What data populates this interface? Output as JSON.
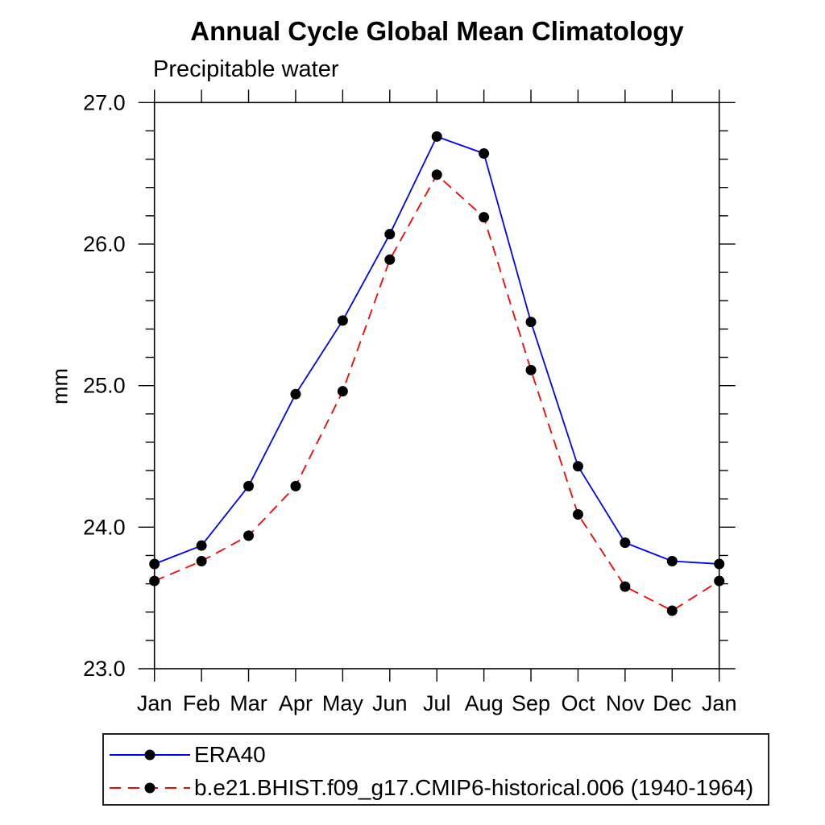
{
  "header": {
    "title": "Annual Cycle Global Mean Climatology",
    "subtitle": "Precipitable water"
  },
  "chart_data": {
    "type": "line",
    "title": "Annual Cycle Global Mean Climatology",
    "subtitle": "Precipitable water",
    "xlabel": "",
    "ylabel": "mm",
    "x_tick_labels": [
      "Jan",
      "Feb",
      "Mar",
      "Apr",
      "May",
      "Jun",
      "Jul",
      "Aug",
      "Sep",
      "Oct",
      "Nov",
      "Dec",
      "Jan"
    ],
    "y_tick_labels": [
      "23.0",
      "24.0",
      "25.0",
      "26.0",
      "27.0"
    ],
    "ylim": [
      23.0,
      27.0
    ],
    "y_major_step": 1.0,
    "y_minor_step": 0.2,
    "grid": false,
    "legend_position": "bottom-left-box",
    "axis_color": "#000000",
    "marker_color": "#000000",
    "series": [
      {
        "name": "ERA40",
        "color": "#0000ff",
        "style": "solid",
        "marker": "circle",
        "values": [
          23.74,
          23.87,
          24.29,
          24.94,
          25.46,
          26.07,
          26.76,
          26.64,
          25.45,
          24.43,
          23.89,
          23.76,
          23.74
        ]
      },
      {
        "name": "b.e21.BHIST.f09_g17.CMIP6-historical.006 (1940-1964)",
        "color": "#ff0000",
        "style": "dashed",
        "marker": "circle",
        "values": [
          23.62,
          23.76,
          23.94,
          24.29,
          24.96,
          25.89,
          26.49,
          26.19,
          25.11,
          24.09,
          23.58,
          23.41,
          23.62
        ]
      }
    ]
  }
}
